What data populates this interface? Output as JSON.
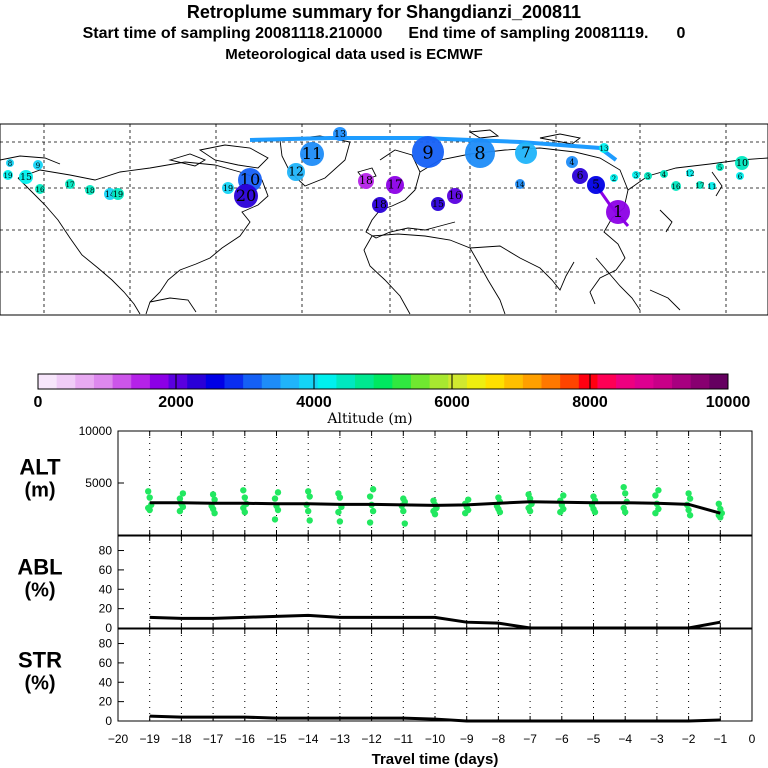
{
  "header": {
    "title": "Retroplume summary for Shangdianzi_200811",
    "start_label": "Start time of sampling 20081118.210000",
    "end_label": "End time of sampling 20081119.",
    "end_suffix": "0",
    "met_label": "Meteorological data used is ECMWF"
  },
  "colorbar": {
    "title": "Altitude (m)",
    "tick_labels": [
      "0",
      "2000",
      "4000",
      "6000",
      "8000",
      "10000"
    ],
    "colors": [
      "#f7e6fb",
      "#f0ccf7",
      "#e8aaf2",
      "#dd88ee",
      "#cc55ea",
      "#b522e8",
      "#8c00e6",
      "#5a00e0",
      "#2a00d8",
      "#0000e6",
      "#0a2df0",
      "#1560f5",
      "#1e8cf8",
      "#20b4fa",
      "#14d4f6",
      "#00f0ee",
      "#00e8c0",
      "#00e890",
      "#00e860",
      "#30e840",
      "#70e830",
      "#a8e830",
      "#d0e830",
      "#eeee10",
      "#ffe000",
      "#ffc000",
      "#ffa000",
      "#ff7800",
      "#ff4400",
      "#ff0010",
      "#ff0055",
      "#ee0080",
      "#dd0090",
      "#c80088",
      "#a80080",
      "#880070",
      "#650060"
    ]
  },
  "map": {
    "labels": [
      {
        "text": "13",
        "color": "#1e90ff"
      },
      {
        "text": "11",
        "color": "#1e8cf8"
      },
      {
        "text": "12",
        "color": "#20b4fa"
      },
      {
        "text": "10",
        "color": "#1560f5"
      },
      {
        "text": "9",
        "color": "#1560f5"
      },
      {
        "text": "8",
        "color": "#1e8cf8"
      },
      {
        "text": "7",
        "color": "#20b4fa"
      },
      {
        "text": "6",
        "color": "#2a00d8"
      },
      {
        "text": "5",
        "color": "#0000e6"
      },
      {
        "text": "4",
        "color": "#1e8cf8"
      },
      {
        "text": "3",
        "color": "#00f0ee"
      },
      {
        "text": "2",
        "color": "#00f0ee"
      },
      {
        "text": "1",
        "color": "#8c00e6"
      },
      {
        "text": "14",
        "color": "#14d4f6"
      },
      {
        "text": "15",
        "color": "#00f0ee"
      },
      {
        "text": "16",
        "color": "#00e8c0"
      },
      {
        "text": "17",
        "color": "#00e8c0"
      },
      {
        "text": "18",
        "color": "#00e8c0"
      },
      {
        "text": "19",
        "color": "#00e8c0"
      },
      {
        "text": "20",
        "color": "#2a00d8"
      },
      {
        "text": "19",
        "color": "#14d4f6"
      },
      {
        "text": "18",
        "color": "#b522e8"
      },
      {
        "text": "17",
        "color": "#8c00e6"
      },
      {
        "text": "16",
        "color": "#5a00e0"
      },
      {
        "text": "15",
        "color": "#2a00d8"
      },
      {
        "text": "14",
        "color": "#1e8cf8"
      },
      {
        "text": "13",
        "color": "#00f0ee"
      },
      {
        "text": "12",
        "color": "#00f0ee"
      },
      {
        "text": "11",
        "color": "#00f0ee"
      },
      {
        "text": "10",
        "color": "#00e8c0"
      },
      {
        "text": "9",
        "color": "#14d4f6"
      },
      {
        "text": "8",
        "color": "#14d4f6"
      },
      {
        "text": "6",
        "color": "#00f0ee"
      },
      {
        "text": "5",
        "color": "#00e8c0"
      },
      {
        "text": "4",
        "color": "#00e8c0"
      },
      {
        "text": "3",
        "color": "#00e8c0"
      },
      {
        "text": "16",
        "color": "#00e8c0"
      },
      {
        "text": "17",
        "color": "#00e8c0"
      },
      {
        "text": "18",
        "color": "#2a00d8"
      },
      {
        "text": "19",
        "color": "#00f0ee"
      }
    ]
  },
  "chart_data": [
    {
      "type": "scatter",
      "panel": "ALT",
      "ylabel": "ALT\n(m)",
      "ylabel_lines": [
        "ALT",
        "(m)"
      ],
      "ylim": [
        0,
        10000
      ],
      "yticks": [
        0,
        5000,
        10000
      ],
      "ytick_labels": [
        "",
        "5000",
        "10000"
      ],
      "xlim": [
        -20,
        0
      ],
      "point_color": "#22e860",
      "line_color": "#000000",
      "median_line": {
        "x": [
          -19,
          -18,
          -17,
          -16,
          -15,
          -14,
          -13,
          -12,
          -11,
          -10,
          -9,
          -8,
          -7,
          -6,
          -5,
          -4,
          -3,
          -2,
          -1
        ],
        "y": [
          3100,
          3100,
          3050,
          3050,
          3000,
          3000,
          2950,
          2950,
          2900,
          2850,
          2900,
          3050,
          3200,
          3150,
          3100,
          3100,
          3050,
          2950,
          2100
        ]
      },
      "points": {
        "x": [
          -19,
          -19,
          -19,
          -19,
          -19,
          -18,
          -18,
          -18,
          -18,
          -18,
          -17,
          -17,
          -17,
          -17,
          -17,
          -16,
          -16,
          -16,
          -16,
          -16,
          -15,
          -15,
          -15,
          -15,
          -15,
          -14,
          -14,
          -14,
          -14,
          -14,
          -13,
          -13,
          -13,
          -13,
          -13,
          -12,
          -12,
          -12,
          -12,
          -12,
          -11,
          -11,
          -11,
          -11,
          -11,
          -10,
          -10,
          -10,
          -10,
          -10,
          -9,
          -9,
          -9,
          -9,
          -9,
          -8,
          -8,
          -8,
          -8,
          -8,
          -7,
          -7,
          -7,
          -7,
          -7,
          -6,
          -6,
          -6,
          -6,
          -6,
          -5,
          -5,
          -5,
          -5,
          -5,
          -4,
          -4,
          -4,
          -4,
          -4,
          -3,
          -3,
          -3,
          -3,
          -3,
          -2,
          -2,
          -2,
          -2,
          -2,
          -1,
          -1,
          -1,
          -1,
          -1
        ],
        "y": [
          4200,
          3600,
          2900,
          2600,
          2400,
          4000,
          3500,
          3000,
          2700,
          2300,
          3900,
          3400,
          2800,
          2500,
          2100,
          4300,
          3600,
          3000,
          2600,
          2200,
          4100,
          3500,
          2800,
          2400,
          1500,
          4200,
          3700,
          2900,
          2300,
          1400,
          4000,
          3600,
          2700,
          2200,
          1300,
          4400,
          3700,
          2900,
          2300,
          1200,
          3500,
          3200,
          2800,
          2300,
          1100,
          3300,
          2900,
          2600,
          2300,
          2000,
          3400,
          3000,
          2700,
          2400,
          2100,
          3600,
          3200,
          2800,
          2500,
          2200,
          3900,
          3500,
          3000,
          2600,
          2300,
          3800,
          3300,
          2900,
          2500,
          2200,
          3700,
          3300,
          2900,
          2500,
          2200,
          4600,
          4000,
          3200,
          2600,
          2200,
          4300,
          3800,
          3000,
          2500,
          2100,
          4000,
          3500,
          2900,
          2400,
          1900,
          3000,
          2500,
          2100,
          1900,
          1700
        ]
      }
    },
    {
      "type": "line",
      "panel": "ABL",
      "ylabel_lines": [
        "ABL",
        "(%)"
      ],
      "ylim": [
        0,
        95
      ],
      "yticks": [
        0,
        20,
        40,
        60,
        80
      ],
      "ytick_labels": [
        "0",
        "20",
        "40",
        "60",
        "80"
      ],
      "xlim": [
        -20,
        0
      ],
      "series": [
        {
          "name": "ABL",
          "color": "#000000",
          "x": [
            -19,
            -18,
            -17,
            -16,
            -15,
            -14,
            -13,
            -12,
            -11,
            -10,
            -9,
            -8,
            -7,
            -6,
            -5,
            -4,
            -3,
            -2,
            -1
          ],
          "y": [
            11,
            10,
            10,
            11,
            12,
            13,
            11,
            11,
            11,
            11,
            6,
            5,
            0,
            0,
            0,
            0,
            0,
            0,
            6
          ]
        }
      ]
    },
    {
      "type": "line",
      "panel": "STR",
      "ylabel_lines": [
        "STR",
        "(%)"
      ],
      "ylim": [
        0,
        95
      ],
      "yticks": [
        0,
        20,
        40,
        60,
        80
      ],
      "ytick_labels": [
        "0",
        "20",
        "40",
        "60",
        "80"
      ],
      "xlim": [
        -20,
        0
      ],
      "xlabel": "Travel time (days)",
      "xticks": [
        -20,
        -19,
        -18,
        -17,
        -16,
        -15,
        -14,
        -13,
        -12,
        -11,
        -10,
        -9,
        -8,
        -7,
        -6,
        -5,
        -4,
        -3,
        -2,
        -1,
        0
      ],
      "xtick_labels": [
        "−20",
        "−19",
        "−18",
        "−17",
        "−16",
        "−15",
        "−14",
        "−13",
        "−12",
        "−11",
        "−10",
        "−9",
        "−8",
        "−7",
        "−6",
        "−5",
        "−4",
        "−3",
        "−2",
        "−1",
        "0"
      ],
      "series": [
        {
          "name": "STR",
          "color": "#000000",
          "x": [
            -19,
            -18,
            -17,
            -16,
            -15,
            -14,
            -13,
            -12,
            -11,
            -10,
            -9,
            -8,
            -7,
            -6,
            -5,
            -4,
            -3,
            -2,
            -1
          ],
          "y": [
            5,
            4,
            4,
            4,
            3,
            3,
            3,
            3,
            3,
            2,
            0,
            0,
            0,
            0,
            0,
            0,
            0,
            0,
            1
          ]
        }
      ]
    }
  ]
}
